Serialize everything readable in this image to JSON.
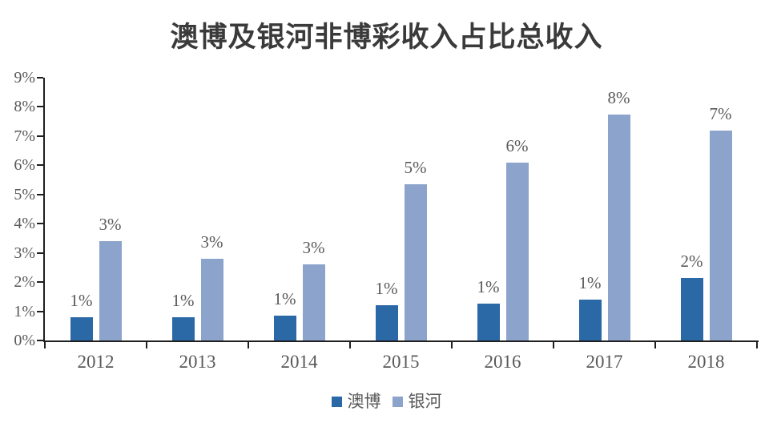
{
  "chart_data": {
    "type": "bar",
    "title": "澳博及银河非博彩收入占比总收入",
    "categories": [
      "2012",
      "2013",
      "2014",
      "2015",
      "2016",
      "2017",
      "2018"
    ],
    "series": [
      {
        "name": "澳博",
        "color": "#2A68A6",
        "values": [
          0.8,
          0.8,
          0.85,
          1.2,
          1.25,
          1.4,
          2.15
        ],
        "labels": [
          "1%",
          "1%",
          "1%",
          "1%",
          "1%",
          "1%",
          "2%"
        ]
      },
      {
        "name": "银河",
        "color": "#8CA4CC",
        "values": [
          3.4,
          2.8,
          2.6,
          5.35,
          6.1,
          7.75,
          7.2
        ],
        "labels": [
          "3%",
          "3%",
          "3%",
          "5%",
          "6%",
          "8%",
          "7%"
        ]
      }
    ],
    "ylim": [
      0,
      9
    ],
    "yticks": [
      "0%",
      "1%",
      "2%",
      "3%",
      "4%",
      "5%",
      "6%",
      "7%",
      "8%",
      "9%"
    ],
    "xlabel": "",
    "ylabel": "",
    "grid": false,
    "legend_position": "bottom",
    "colors": {
      "axis": "#1f1f1f",
      "tick_text": "#595959",
      "title_text": "#3a3a3a"
    }
  }
}
